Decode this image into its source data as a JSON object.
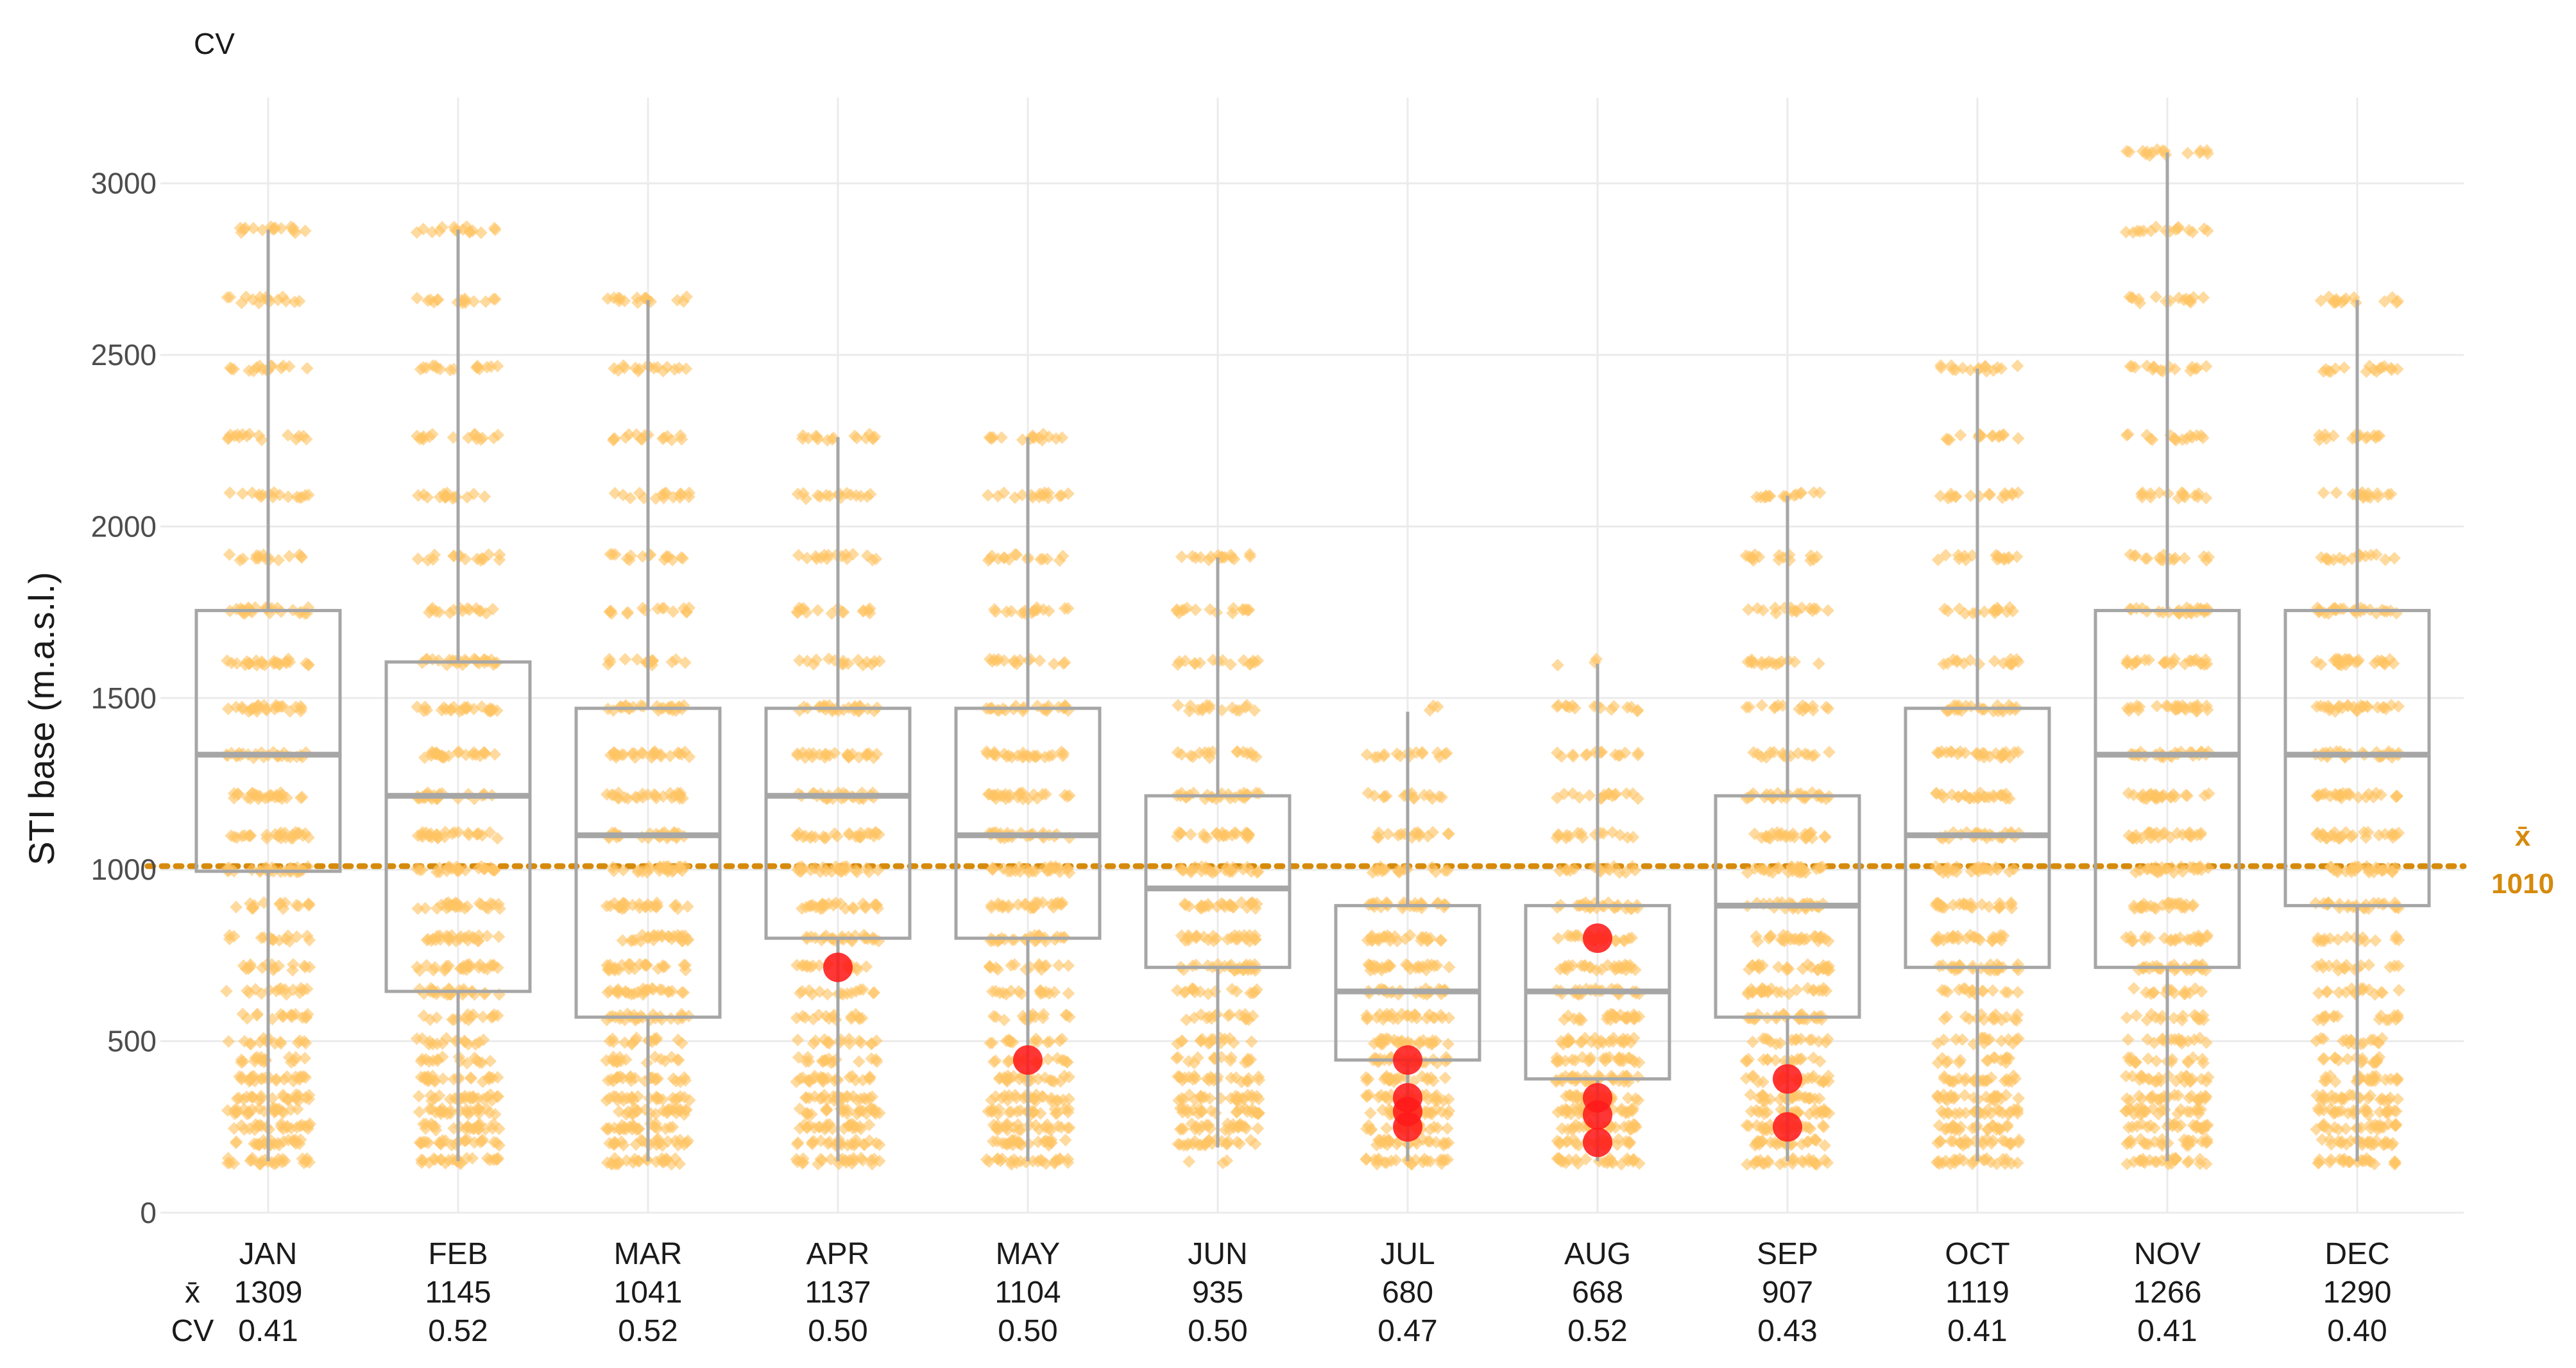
{
  "chart_data": {
    "type": "boxplot",
    "title": "",
    "corner_label": "CV",
    "ylabel": "STI base (m.a.s.l.)",
    "xlabel": "",
    "ylim": [
      0,
      3250
    ],
    "yticks": [
      0,
      500,
      1000,
      1500,
      2000,
      2500,
      3000
    ],
    "grid": true,
    "categories": [
      "JAN",
      "FEB",
      "MAR",
      "APR",
      "MAY",
      "JUN",
      "JUL",
      "AUG",
      "SEP",
      "OCT",
      "NOV",
      "DEC"
    ],
    "stats_row_labels": {
      "mean": "x̄",
      "cv": "CV"
    },
    "means": [
      "1309",
      "1145",
      "1041",
      "1137",
      "1104",
      "935",
      "680",
      "668",
      "907",
      "1119",
      "1266",
      "1290"
    ],
    "cvs": [
      "0.41",
      "0.52",
      "0.52",
      "0.50",
      "0.50",
      "0.50",
      "0.47",
      "0.52",
      "0.43",
      "0.41",
      "0.41",
      "0.40"
    ],
    "boxes": [
      {
        "q1": 995,
        "median": 1335,
        "q3": 1755,
        "whisker_low": 150,
        "whisker_high": 2865
      },
      {
        "q1": 645,
        "median": 1215,
        "q3": 1605,
        "whisker_low": 150,
        "whisker_high": 2865
      },
      {
        "q1": 570,
        "median": 1100,
        "q3": 1470,
        "whisker_low": 150,
        "whisker_high": 2660
      },
      {
        "q1": 800,
        "median": 1215,
        "q3": 1470,
        "whisker_low": 150,
        "whisker_high": 2260
      },
      {
        "q1": 800,
        "median": 1100,
        "q3": 1470,
        "whisker_low": 150,
        "whisker_high": 2260
      },
      {
        "q1": 715,
        "median": 945,
        "q3": 1215,
        "whisker_low": 190,
        "whisker_high": 1910
      },
      {
        "q1": 445,
        "median": 645,
        "q3": 895,
        "whisker_low": 150,
        "whisker_high": 1460
      },
      {
        "q1": 390,
        "median": 645,
        "q3": 895,
        "whisker_low": 150,
        "whisker_high": 1600
      },
      {
        "q1": 570,
        "median": 895,
        "q3": 1215,
        "whisker_low": 150,
        "whisker_high": 2090
      },
      {
        "q1": 715,
        "median": 1100,
        "q3": 1470,
        "whisker_low": 150,
        "whisker_high": 2460
      },
      {
        "q1": 715,
        "median": 1335,
        "q3": 1755,
        "whisker_low": 150,
        "whisker_high": 3090
      },
      {
        "q1": 895,
        "median": 1335,
        "q3": 1755,
        "whisker_low": 150,
        "whisker_high": 2660
      }
    ],
    "highlight_points": [
      {
        "month": "APR",
        "value": 715
      },
      {
        "month": "MAY",
        "value": 445
      },
      {
        "month": "JUL",
        "value": 445
      },
      {
        "month": "JUL",
        "value": 335
      },
      {
        "month": "JUL",
        "value": 295
      },
      {
        "month": "JUL",
        "value": 250
      },
      {
        "month": "AUG",
        "value": 800
      },
      {
        "month": "AUG",
        "value": 335
      },
      {
        "month": "AUG",
        "value": 285
      },
      {
        "month": "AUG",
        "value": 205
      },
      {
        "month": "SEP",
        "value": 390
      },
      {
        "month": "SEP",
        "value": 250
      }
    ],
    "jitter_levels": [
      150,
      205,
      250,
      295,
      335,
      390,
      445,
      500,
      570,
      645,
      715,
      800,
      895,
      1000,
      1100,
      1215,
      1335,
      1470,
      1605,
      1755,
      1910,
      2090,
      2260,
      2460,
      2660,
      2865,
      3090
    ],
    "reference_line": {
      "value": 1010,
      "symbol": "x̄",
      "label": "1010"
    },
    "colors": {
      "points": "#ffc462",
      "highlight": "#ff1a1a",
      "box": "#a6a6a6",
      "whisker": "#a6a6a6",
      "reference": "#d68a0c",
      "grid": "#ebebeb"
    }
  }
}
